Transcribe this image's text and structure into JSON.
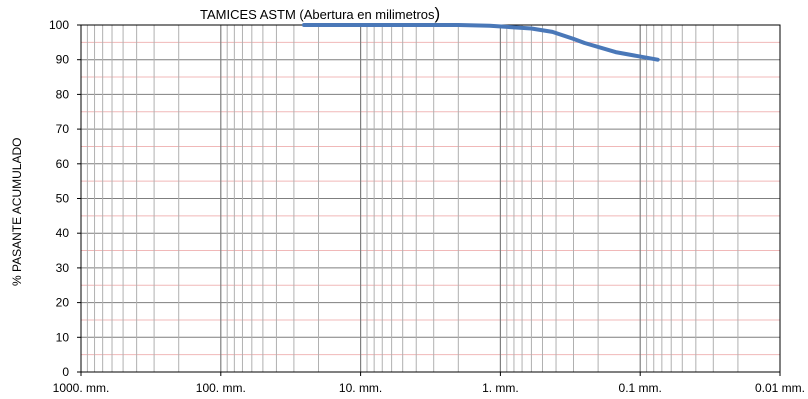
{
  "chart_data": {
    "type": "line",
    "title": "TAMICES ASTM (Abertura en milimetros",
    "title_close": ")",
    "ylabel": "% PASANTE ACUMULADO",
    "xlabel": "",
    "x_scale": "log",
    "x_reversed": true,
    "xlim": [
      1000,
      0.01
    ],
    "ylim": [
      0,
      100
    ],
    "x_ticks": [
      {
        "value": 1000,
        "label": "1000. mm."
      },
      {
        "value": 100,
        "label": "100. mm."
      },
      {
        "value": 10,
        "label": "10. mm."
      },
      {
        "value": 1,
        "label": "1. mm."
      },
      {
        "value": 0.1,
        "label": "0.1 mm."
      },
      {
        "value": 0.01,
        "label": "0.01 mm."
      }
    ],
    "y_ticks": [
      0,
      10,
      20,
      30,
      40,
      50,
      60,
      70,
      80,
      90,
      100
    ],
    "grid": true,
    "legend": "none",
    "colors": {
      "line": "#4a78b8",
      "major_grid": "#7f7f7f",
      "minor_grid": "#b0b0b0",
      "horizontal_grid": "#f0b8b8",
      "frame": "#000000"
    },
    "series": [
      {
        "x": [
          25.4,
          19.05,
          12.7,
          9.525,
          4.76,
          2.0,
          1.19,
          0.85,
          0.6,
          0.425,
          0.3,
          0.25,
          0.15,
          0.075
        ],
        "y": [
          100,
          100,
          100,
          100,
          100,
          100,
          99.8,
          99.4,
          99,
          98,
          96,
          94.8,
          92.2,
          90
        ]
      }
    ]
  }
}
